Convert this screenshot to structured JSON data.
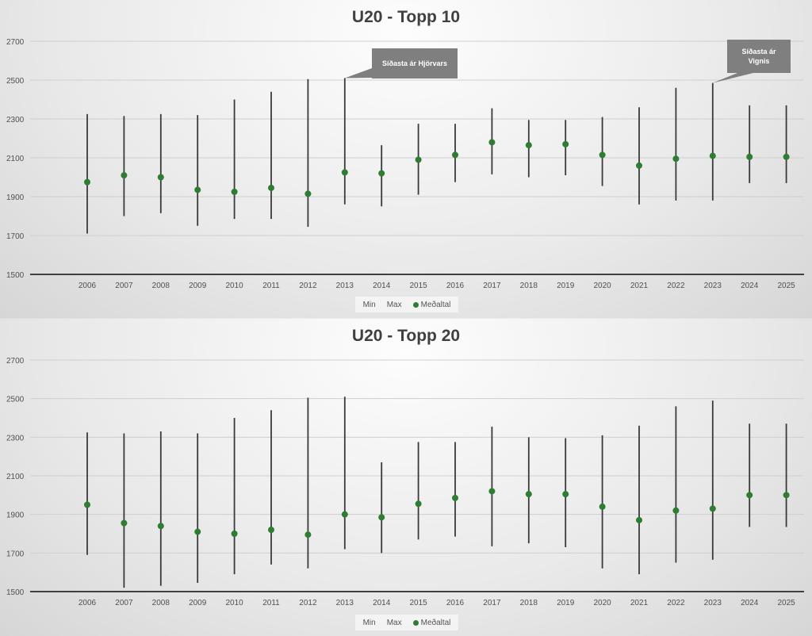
{
  "colors": {
    "mean_dot": "#2e7d32",
    "range_line": "#3a3a3a",
    "axis": "#404040",
    "grid": "#cfcfcf",
    "tick_text": "#505050"
  },
  "legend": {
    "min_label": "Min",
    "max_label": "Max",
    "mean_label": "Meðaltal"
  },
  "chart_data": [
    {
      "type": "scatter",
      "title": "U20 - Topp 10",
      "ylim": [
        1500,
        2700
      ],
      "y_ticks": [
        1500,
        1700,
        1900,
        2100,
        2300,
        2500,
        2700
      ],
      "grid": true,
      "legend_position": "bottom",
      "categories": [
        "2006",
        "2007",
        "2008",
        "2009",
        "2010",
        "2011",
        "2012",
        "2013",
        "2014",
        "2015",
        "2016",
        "2017",
        "2018",
        "2019",
        "2020",
        "2021",
        "2022",
        "2023",
        "2024",
        "2025"
      ],
      "series": [
        {
          "name": "Min",
          "values": [
            1710,
            1800,
            1815,
            1750,
            1785,
            1785,
            1745,
            1860,
            1850,
            1910,
            1975,
            2015,
            2000,
            2010,
            1955,
            1860,
            1880,
            1880,
            1970,
            1970
          ]
        },
        {
          "name": "Max",
          "values": [
            2325,
            2315,
            2325,
            2320,
            2400,
            2440,
            2505,
            2510,
            2165,
            2275,
            2275,
            2355,
            2295,
            2295,
            2310,
            2360,
            2460,
            2485,
            2370,
            2370
          ]
        },
        {
          "name": "Meðaltal",
          "values": [
            1975,
            2010,
            2000,
            1935,
            1925,
            1945,
            1915,
            2025,
            2020,
            2090,
            2115,
            2180,
            2165,
            2170,
            2115,
            2060,
            2095,
            2110,
            2105,
            2105
          ]
        }
      ],
      "annotations": [
        {
          "text": "Síðasta ár Hjörvars",
          "category": "2013",
          "value": 2510
        },
        {
          "text": "Síðasta ár Vignis",
          "category": "2023",
          "value": 2485
        }
      ]
    },
    {
      "type": "scatter",
      "title": "U20 - Topp 20",
      "ylim": [
        1500,
        2700
      ],
      "y_ticks": [
        1500,
        1700,
        1900,
        2100,
        2300,
        2500,
        2700
      ],
      "grid": true,
      "legend_position": "bottom",
      "categories": [
        "2006",
        "2007",
        "2008",
        "2009",
        "2010",
        "2011",
        "2012",
        "2013",
        "2014",
        "2015",
        "2016",
        "2017",
        "2018",
        "2019",
        "2020",
        "2021",
        "2022",
        "2023",
        "2024",
        "2025"
      ],
      "series": [
        {
          "name": "Min",
          "values": [
            1690,
            1520,
            1530,
            1545,
            1590,
            1640,
            1620,
            1720,
            1700,
            1770,
            1785,
            1735,
            1750,
            1730,
            1620,
            1590,
            1650,
            1665,
            1835,
            1835
          ]
        },
        {
          "name": "Max",
          "values": [
            2325,
            2320,
            2330,
            2320,
            2400,
            2440,
            2505,
            2510,
            2170,
            2275,
            2275,
            2355,
            2300,
            2295,
            2310,
            2360,
            2460,
            2490,
            2370,
            2370
          ]
        },
        {
          "name": "Meðaltal",
          "values": [
            1950,
            1855,
            1840,
            1810,
            1800,
            1820,
            1795,
            1900,
            1885,
            1955,
            1985,
            2020,
            2005,
            2005,
            1940,
            1870,
            1920,
            1930,
            2000,
            2000
          ]
        }
      ],
      "annotations": []
    }
  ]
}
